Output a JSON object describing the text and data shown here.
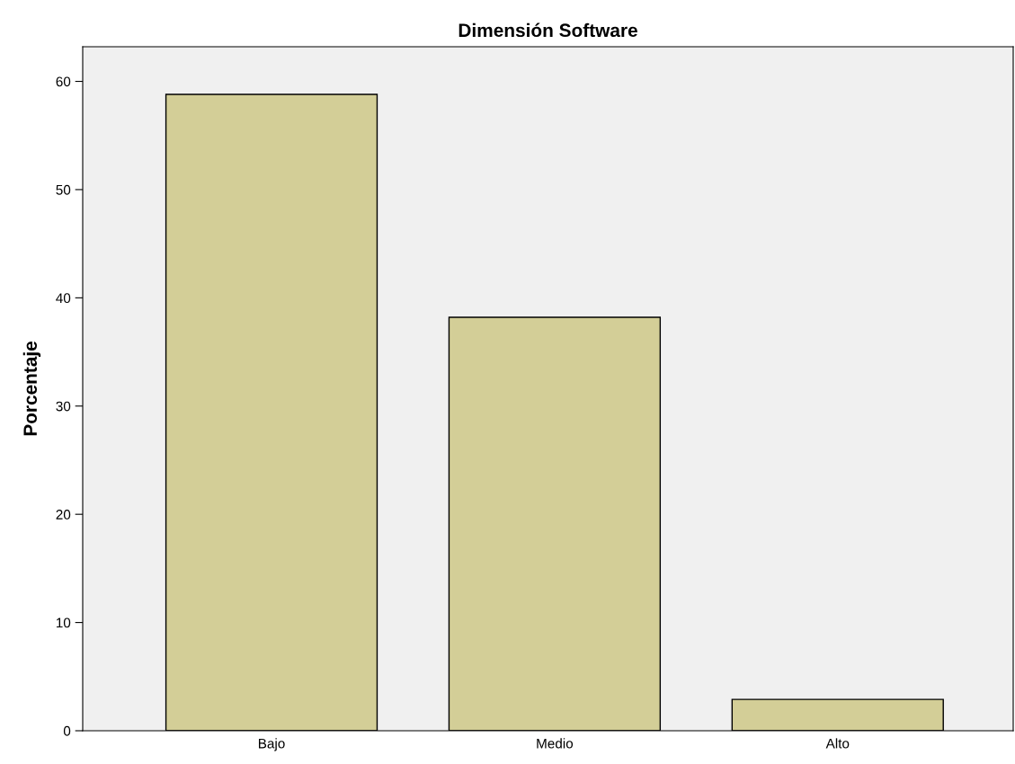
{
  "chart_data": {
    "type": "bar",
    "title": "Dimensión Software",
    "ylabel": "Porcentaje",
    "categories": [
      "Bajo",
      "Medio",
      "Alto"
    ],
    "values": [
      58.8,
      38.2,
      2.9
    ],
    "color": "#d3ce97",
    "ylim": [
      0,
      63.2
    ],
    "yticks": [
      0,
      10,
      20,
      30,
      40,
      50,
      60
    ],
    "grid": false
  }
}
